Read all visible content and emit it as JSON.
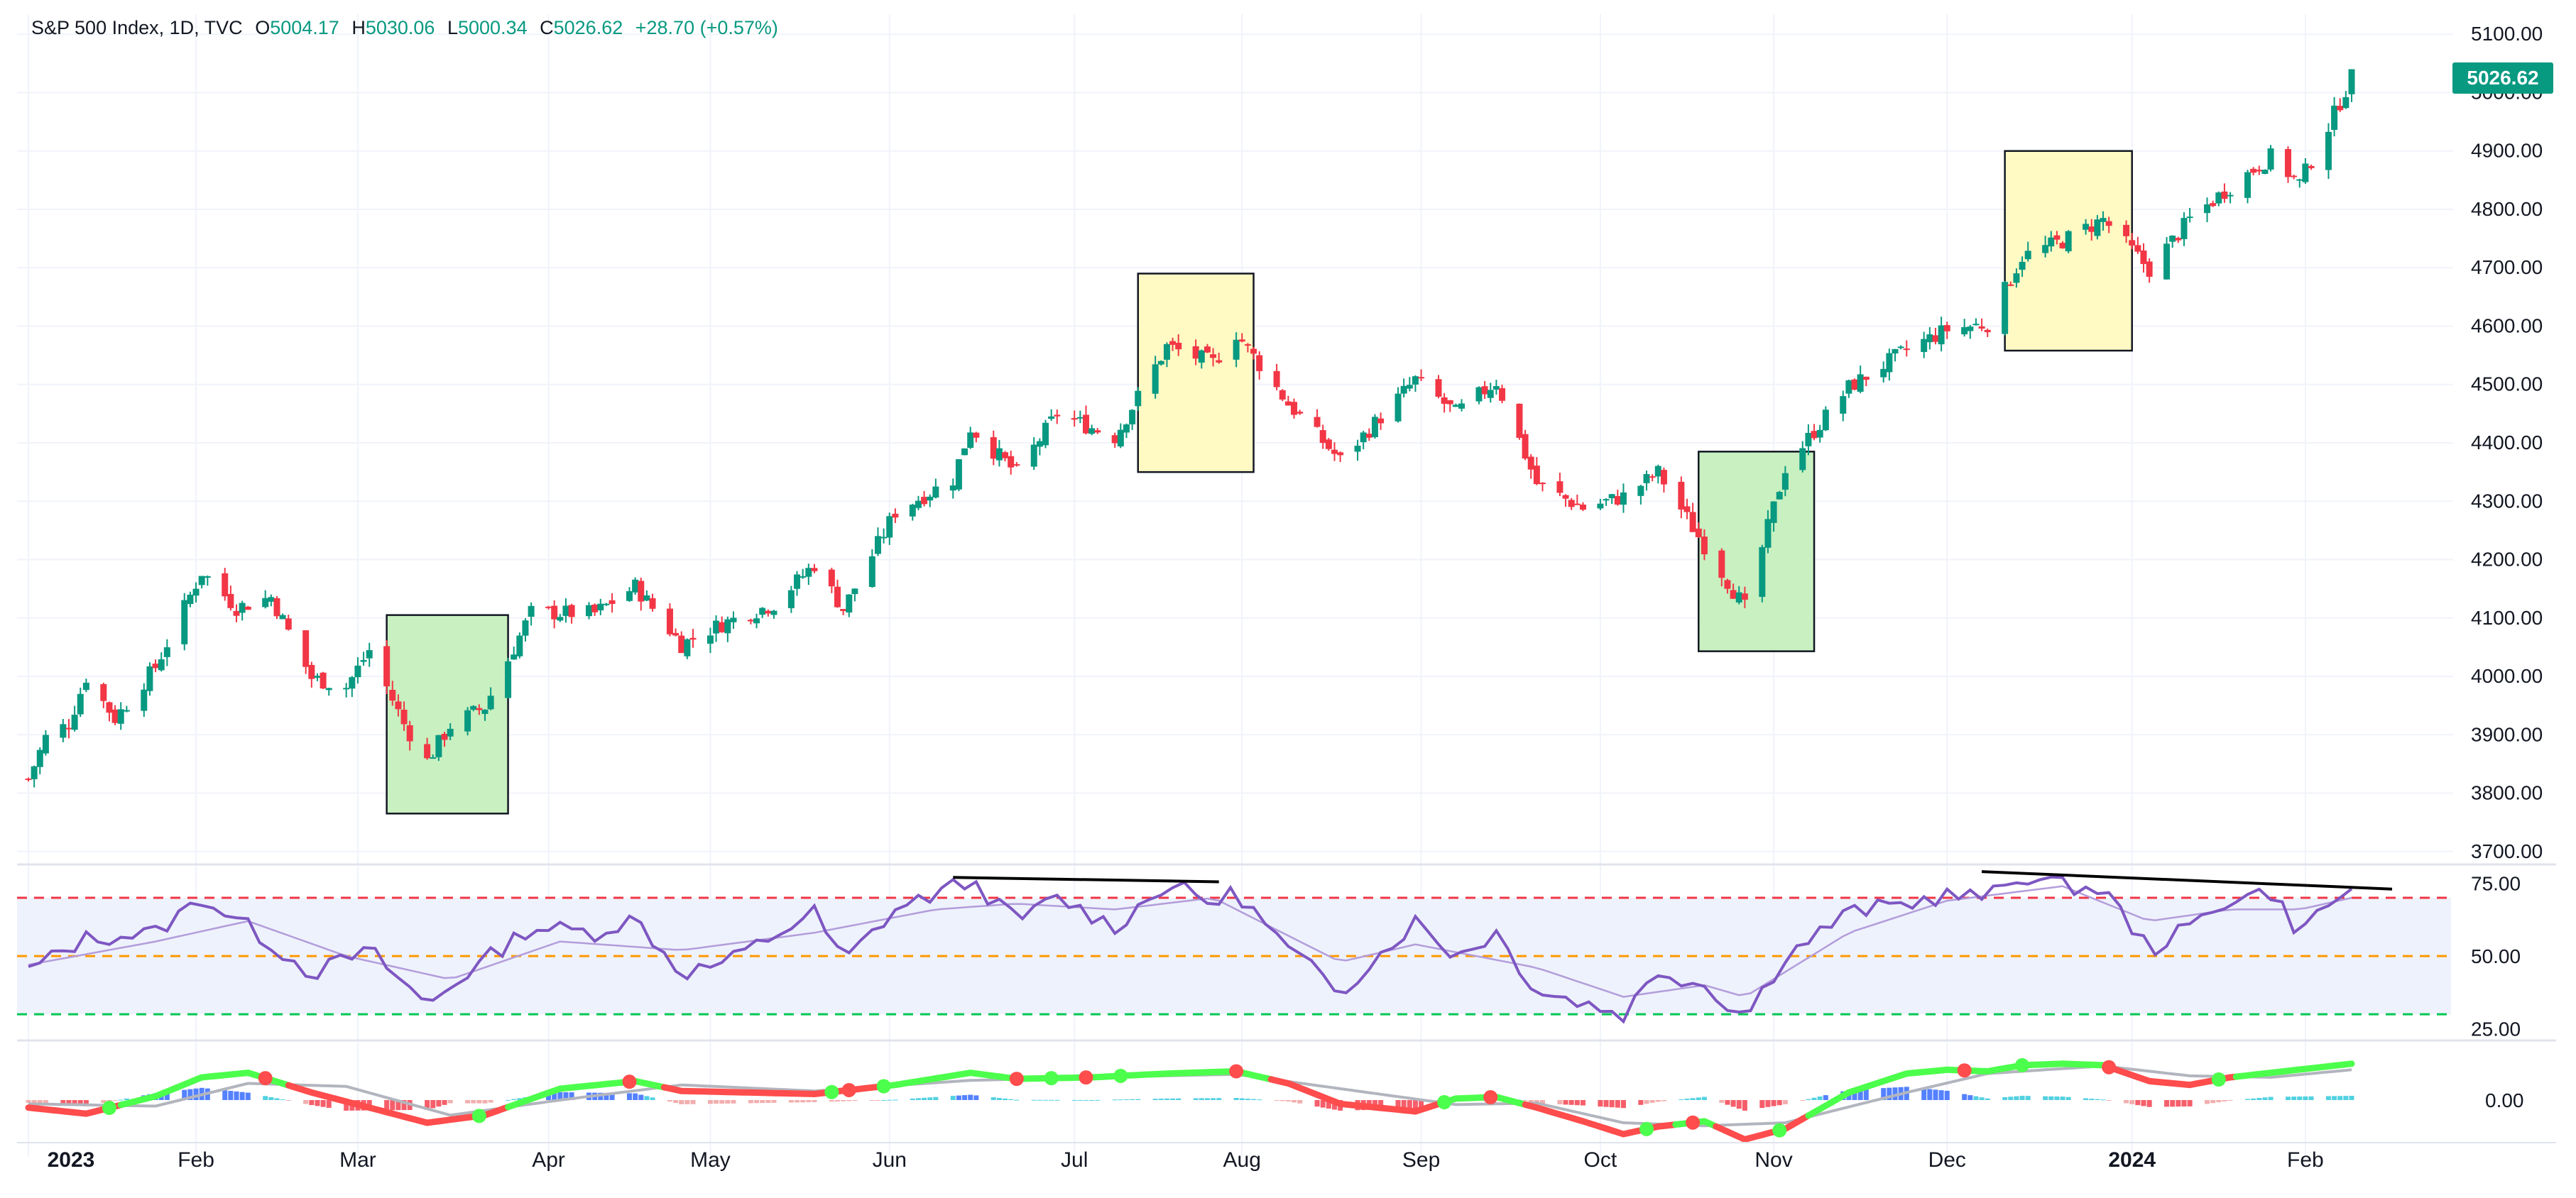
{
  "legend": {
    "symbol": "S&P 500 Index, 1D, TVC",
    "open_label": "O",
    "open": "5004.17",
    "high_label": "H",
    "high": "5030.06",
    "low_label": "L",
    "low": "5000.34",
    "close_label": "C",
    "close": "5026.62",
    "change": "+28.70 (+0.57%)"
  },
  "last_price_badge": "5026.62",
  "colors": {
    "up": "#089981",
    "down": "#f23645",
    "rsi": "#7e57c2",
    "rsi_band": "#eef2fc",
    "overbought": "#f23645",
    "mid": "#ff9800",
    "oversold": "#00c853",
    "yellow_box": "#fff9c4",
    "green_box": "#c8f0c0",
    "macd_up": "#4cff4c",
    "macd_down": "#ff4c4c"
  },
  "chart_data": {
    "type": "candlestick",
    "title": "S&P 500 Index, 1D, TVC",
    "x_ticks": [
      "2023",
      "Feb",
      "Mar",
      "Apr",
      "May",
      "Jun",
      "Jul",
      "Aug",
      "Sep",
      "Oct",
      "Nov",
      "Dec",
      "2024",
      "Feb"
    ],
    "y_ticks": [
      3700,
      3800,
      3900,
      4000,
      4100,
      4200,
      4300,
      4400,
      4500,
      4600,
      4700,
      4800,
      4900,
      5000,
      5100
    ],
    "y_tick_labels": [
      "3700.00",
      "3800.00",
      "3900.00",
      "4000.00",
      "4100.00",
      "4200.00",
      "4300.00",
      "4400.00",
      "4500.00",
      "4600.00",
      "4700.00",
      "4800.00",
      "4900.00",
      "5000.00",
      "5100.00"
    ],
    "ylim": [
      3690,
      5110
    ],
    "date_range": [
      "2023-01-03",
      "2024-02-09"
    ],
    "close_path": [
      [
        "2023-01-03",
        3824
      ],
      [
        "2023-01-06",
        3895
      ],
      [
        "2023-01-10",
        3919
      ],
      [
        "2023-01-13",
        3999
      ],
      [
        "2023-01-18",
        3928
      ],
      [
        "2023-01-25",
        4016
      ],
      [
        "2023-02-02",
        4179
      ],
      [
        "2023-02-08",
        4118
      ],
      [
        "2023-02-14",
        4136
      ],
      [
        "2023-02-21",
        3997
      ],
      [
        "2023-02-27",
        3982
      ],
      [
        "2023-03-03",
        4045
      ],
      [
        "2023-03-09",
        3918
      ],
      [
        "2023-03-13",
        3855
      ],
      [
        "2023-03-17",
        3916
      ],
      [
        "2023-03-23",
        3948
      ],
      [
        "2023-03-31",
        4109
      ],
      [
        "2023-04-11",
        4108
      ],
      [
        "2023-04-18",
        4154
      ],
      [
        "2023-04-26",
        4055
      ],
      [
        "2023-05-03",
        4090
      ],
      [
        "2023-05-12",
        4124
      ],
      [
        "2023-05-19",
        4192
      ],
      [
        "2023-05-24",
        4115
      ],
      [
        "2023-06-02",
        4282
      ],
      [
        "2023-06-12",
        4338
      ],
      [
        "2023-06-15",
        4426
      ],
      [
        "2023-06-23",
        4348
      ],
      [
        "2023-06-30",
        4450
      ],
      [
        "2023-07-10",
        4410
      ],
      [
        "2023-07-19",
        4565
      ],
      [
        "2023-07-27",
        4537
      ],
      [
        "2023-07-31",
        4588
      ],
      [
        "2023-08-09",
        4467
      ],
      [
        "2023-08-18",
        4370
      ],
      [
        "2023-08-31",
        4508
      ],
      [
        "2023-09-07",
        4451
      ],
      [
        "2023-09-14",
        4505
      ],
      [
        "2023-09-21",
        4330
      ],
      [
        "2023-09-29",
        4288
      ],
      [
        "2023-10-06",
        4308
      ],
      [
        "2023-10-12",
        4349
      ],
      [
        "2023-10-20",
        4224
      ],
      [
        "2023-10-27",
        4117
      ],
      [
        "2023-11-03",
        4358
      ],
      [
        "2023-11-14",
        4495
      ],
      [
        "2023-11-24",
        4559
      ],
      [
        "2023-12-01",
        4594
      ],
      [
        "2023-12-08",
        4604
      ],
      [
        "2023-12-14",
        4719
      ],
      [
        "2023-12-21",
        4746
      ],
      [
        "2023-12-28",
        4783
      ],
      [
        "2024-01-05",
        4697
      ],
      [
        "2024-01-12",
        4783
      ],
      [
        "2024-01-19",
        4839
      ],
      [
        "2024-01-26",
        4890
      ],
      [
        "2024-01-31",
        4845
      ],
      [
        "2024-02-05",
        4942
      ],
      [
        "2024-02-09",
        5026
      ]
    ],
    "highlight_boxes": [
      {
        "type": "green",
        "from": "2023-03-06",
        "to": "2023-03-27",
        "low": 3765,
        "high": 4105
      },
      {
        "type": "yellow",
        "from": "2023-07-14",
        "to": "2023-08-03",
        "low": 4350,
        "high": 4690
      },
      {
        "type": "green",
        "from": "2023-10-19",
        "to": "2023-11-08",
        "low": 4043,
        "high": 4385
      },
      {
        "type": "yellow",
        "from": "2023-12-11",
        "to": "2024-01-02",
        "low": 4558,
        "high": 4900
      }
    ],
    "rsi": {
      "y_ticks": [
        25,
        50,
        75
      ],
      "y_tick_labels": [
        "25.00",
        "50.00",
        "75.00"
      ],
      "ylim": [
        22,
        80
      ],
      "levels": {
        "overbought": 70,
        "mid": 50,
        "oversold": 30
      },
      "path": [
        [
          "2023-01-03",
          45
        ],
        [
          "2023-01-13",
          56
        ],
        [
          "2023-01-25",
          58
        ],
        [
          "2023-02-02",
          70
        ],
        [
          "2023-02-10",
          60
        ],
        [
          "2023-02-21",
          44
        ],
        [
          "2023-03-03",
          52
        ],
        [
          "2023-03-13",
          33
        ],
        [
          "2023-03-17",
          40
        ],
        [
          "2023-03-31",
          60
        ],
        [
          "2023-04-11",
          58
        ],
        [
          "2023-04-18",
          63
        ],
        [
          "2023-04-26",
          44
        ],
        [
          "2023-05-04",
          48
        ],
        [
          "2023-05-19",
          65
        ],
        [
          "2023-05-24",
          48
        ],
        [
          "2023-06-02",
          66
        ],
        [
          "2023-06-15",
          76
        ],
        [
          "2023-06-23",
          62
        ],
        [
          "2023-06-30",
          70
        ],
        [
          "2023-07-10",
          60
        ],
        [
          "2023-07-19",
          75
        ],
        [
          "2023-07-27",
          68
        ],
        [
          "2023-07-31",
          72
        ],
        [
          "2023-08-09",
          52
        ],
        [
          "2023-08-18",
          38
        ],
        [
          "2023-08-31",
          62
        ],
        [
          "2023-09-07",
          50
        ],
        [
          "2023-09-14",
          58
        ],
        [
          "2023-09-21",
          38
        ],
        [
          "2023-09-29",
          34
        ],
        [
          "2023-10-06",
          30
        ],
        [
          "2023-10-12",
          45
        ],
        [
          "2023-10-20",
          40
        ],
        [
          "2023-10-27",
          29
        ],
        [
          "2023-11-03",
          50
        ],
        [
          "2023-11-14",
          65
        ],
        [
          "2023-11-24",
          68
        ],
        [
          "2023-12-01",
          71
        ],
        [
          "2023-12-08",
          70
        ],
        [
          "2023-12-14",
          78
        ],
        [
          "2023-12-21",
          74
        ],
        [
          "2023-12-28",
          73
        ],
        [
          "2024-01-05",
          52
        ],
        [
          "2024-01-12",
          60
        ],
        [
          "2024-01-19",
          70
        ],
        [
          "2024-01-26",
          72
        ],
        [
          "2024-01-31",
          58
        ],
        [
          "2024-02-05",
          68
        ],
        [
          "2024-02-09",
          72
        ]
      ],
      "signal_path": [
        [
          "2023-01-03",
          47
        ],
        [
          "2023-01-25",
          55
        ],
        [
          "2023-02-10",
          62
        ],
        [
          "2023-02-27",
          50
        ],
        [
          "2023-03-17",
          42
        ],
        [
          "2023-04-05",
          55
        ],
        [
          "2023-04-26",
          52
        ],
        [
          "2023-05-19",
          58
        ],
        [
          "2023-06-09",
          66
        ],
        [
          "2023-06-23",
          68
        ],
        [
          "2023-07-10",
          66
        ],
        [
          "2023-07-27",
          70
        ],
        [
          "2023-08-18",
          48
        ],
        [
          "2023-08-31",
          54
        ],
        [
          "2023-09-21",
          46
        ],
        [
          "2023-10-06",
          36
        ],
        [
          "2023-10-20",
          40
        ],
        [
          "2023-10-27",
          36
        ],
        [
          "2023-11-14",
          58
        ],
        [
          "2023-12-01",
          69
        ],
        [
          "2023-12-21",
          74
        ],
        [
          "2024-01-05",
          62
        ],
        [
          "2024-01-19",
          66
        ],
        [
          "2024-01-31",
          66
        ],
        [
          "2024-02-09",
          70
        ]
      ],
      "divergence_lines": [
        {
          "from": [
            "2023-06-12",
            77
          ],
          "to": [
            "2023-07-28",
            75.5
          ]
        },
        {
          "from": [
            "2023-12-07",
            79
          ],
          "to": [
            "2024-02-16",
            73
          ]
        }
      ]
    },
    "macd": {
      "y_ticks": [
        0
      ],
      "y_tick_labels": [
        "0.00"
      ],
      "ylim": [
        -75,
        75
      ],
      "macd_path": [
        [
          "2023-01-03",
          -10
        ],
        [
          "2023-01-13",
          -18
        ],
        [
          "2023-01-25",
          5
        ],
        [
          "2023-02-02",
          30
        ],
        [
          "2023-02-10",
          36
        ],
        [
          "2023-02-21",
          10
        ],
        [
          "2023-03-03",
          -10
        ],
        [
          "2023-03-13",
          -30
        ],
        [
          "2023-03-23",
          -20
        ],
        [
          "2023-04-05",
          15
        ],
        [
          "2023-04-18",
          25
        ],
        [
          "2023-04-26",
          12
        ],
        [
          "2023-05-19",
          8
        ],
        [
          "2023-06-02",
          20
        ],
        [
          "2023-06-15",
          36
        ],
        [
          "2023-06-23",
          28
        ],
        [
          "2023-07-06",
          30
        ],
        [
          "2023-07-19",
          35
        ],
        [
          "2023-07-31",
          38
        ],
        [
          "2023-08-09",
          22
        ],
        [
          "2023-08-18",
          -5
        ],
        [
          "2023-08-31",
          -15
        ],
        [
          "2023-09-07",
          2
        ],
        [
          "2023-09-14",
          4
        ],
        [
          "2023-09-21",
          -10
        ],
        [
          "2023-09-29",
          -28
        ],
        [
          "2023-10-06",
          -45
        ],
        [
          "2023-10-12",
          -35
        ],
        [
          "2023-10-20",
          -28
        ],
        [
          "2023-10-27",
          -52
        ],
        [
          "2023-11-03",
          -38
        ],
        [
          "2023-11-14",
          10
        ],
        [
          "2023-11-24",
          35
        ],
        [
          "2023-12-01",
          40
        ],
        [
          "2023-12-08",
          38
        ],
        [
          "2023-12-14",
          46
        ],
        [
          "2023-12-21",
          48
        ],
        [
          "2023-12-28",
          46
        ],
        [
          "2024-01-05",
          25
        ],
        [
          "2024-01-12",
          20
        ],
        [
          "2024-01-19",
          30
        ],
        [
          "2024-01-26",
          36
        ],
        [
          "2024-02-09",
          48
        ]
      ],
      "signal_path": [
        [
          "2023-01-03",
          -5
        ],
        [
          "2023-01-25",
          -8
        ],
        [
          "2023-02-10",
          22
        ],
        [
          "2023-02-27",
          18
        ],
        [
          "2023-03-17",
          -20
        ],
        [
          "2023-04-05",
          0
        ],
        [
          "2023-04-26",
          20
        ],
        [
          "2023-05-19",
          12
        ],
        [
          "2023-06-15",
          26
        ],
        [
          "2023-07-06",
          30
        ],
        [
          "2023-07-31",
          34
        ],
        [
          "2023-08-18",
          15
        ],
        [
          "2023-09-07",
          -6
        ],
        [
          "2023-09-21",
          -4
        ],
        [
          "2023-10-06",
          -30
        ],
        [
          "2023-10-20",
          -34
        ],
        [
          "2023-11-03",
          -30
        ],
        [
          "2023-11-24",
          10
        ],
        [
          "2023-12-08",
          35
        ],
        [
          "2023-12-28",
          45
        ],
        [
          "2024-01-12",
          32
        ],
        [
          "2024-01-26",
          30
        ],
        [
          "2024-02-09",
          40
        ]
      ],
      "cross_markers": [
        {
          "date": "2023-01-17",
          "type": "bull"
        },
        {
          "date": "2023-02-13",
          "type": "bear"
        },
        {
          "date": "2023-03-22",
          "type": "bull"
        },
        {
          "date": "2023-04-17",
          "type": "bear"
        },
        {
          "date": "2023-05-22",
          "type": "bull"
        },
        {
          "date": "2023-05-25",
          "type": "bear"
        },
        {
          "date": "2023-05-31",
          "type": "bull"
        },
        {
          "date": "2023-06-23",
          "type": "bear"
        },
        {
          "date": "2023-06-29",
          "type": "bull"
        },
        {
          "date": "2023-07-05",
          "type": "bear"
        },
        {
          "date": "2023-07-11",
          "type": "bull"
        },
        {
          "date": "2023-07-31",
          "type": "bear"
        },
        {
          "date": "2023-09-05",
          "type": "bull"
        },
        {
          "date": "2023-09-13",
          "type": "bear"
        },
        {
          "date": "2023-10-10",
          "type": "bull"
        },
        {
          "date": "2023-10-18",
          "type": "bear"
        },
        {
          "date": "2023-11-02",
          "type": "bull"
        },
        {
          "date": "2023-12-04",
          "type": "bear"
        },
        {
          "date": "2023-12-14",
          "type": "bull"
        },
        {
          "date": "2023-12-29",
          "type": "bear"
        },
        {
          "date": "2024-01-17",
          "type": "bull"
        }
      ]
    }
  }
}
